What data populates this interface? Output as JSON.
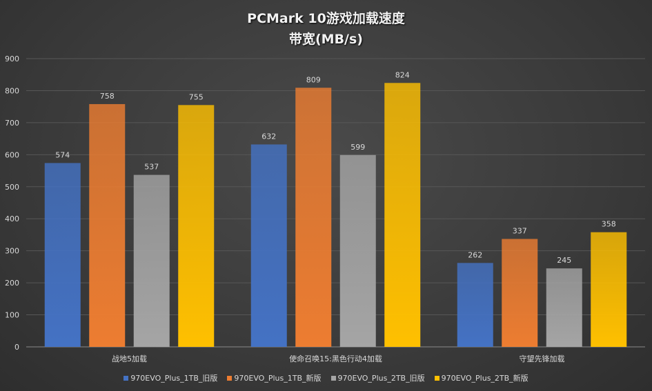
{
  "chart_data": {
    "type": "bar",
    "title": "PCMark  10游戏加载速度",
    "subtitle": "带宽(MB/s)",
    "categories": [
      "战地5加载",
      "使命召唤15:黑色行动4加载",
      "守望先锋加载"
    ],
    "series": [
      {
        "name": "970EVO_Plus_1TB_旧版",
        "color": "#4472c4",
        "values": [
          574,
          632,
          262
        ]
      },
      {
        "name": "970EVO_Plus_1TB_新版",
        "color": "#ed7d31",
        "values": [
          758,
          809,
          337
        ]
      },
      {
        "name": "970EVO_Plus_2TB_旧版",
        "color": "#a5a5a5",
        "values": [
          537,
          599,
          245
        ]
      },
      {
        "name": "970EVO_Plus_2TB_新版",
        "color": "#ffc000",
        "values": [
          755,
          824,
          358
        ]
      }
    ],
    "ylim": [
      0,
      900
    ],
    "yticks": [
      0,
      100,
      200,
      300,
      400,
      500,
      600,
      700,
      800,
      900
    ],
    "grid": true,
    "legend": "bottom"
  }
}
